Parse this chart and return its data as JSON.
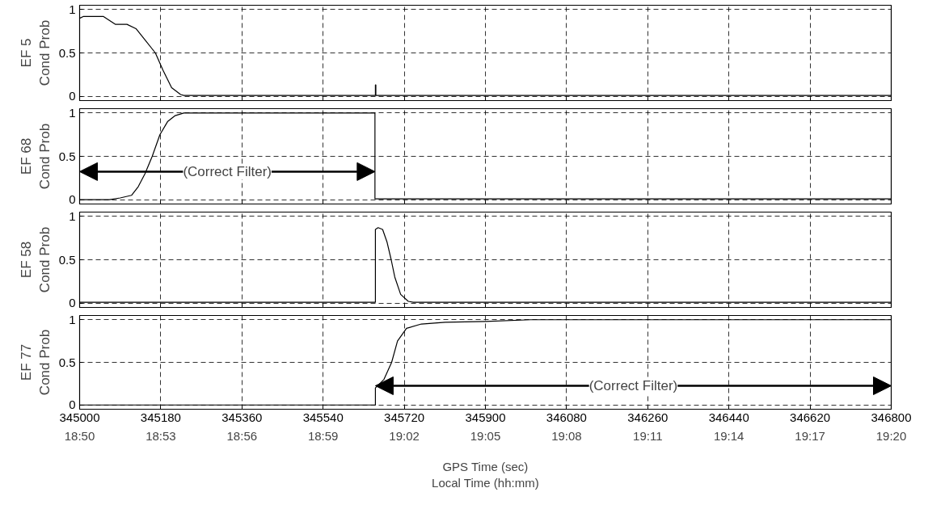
{
  "chart_data": [
    {
      "type": "line",
      "ylabel": "EF 5\nCond Prob",
      "color": "#000000",
      "x": [
        345000,
        345008,
        345053,
        345079,
        345105,
        345125,
        345145,
        345168,
        345185,
        345204,
        345224,
        345231,
        345656,
        345656,
        345657,
        345657,
        346800
      ],
      "values": [
        0.9,
        0.92,
        0.92,
        0.83,
        0.83,
        0.78,
        0.65,
        0.5,
        0.3,
        0.1,
        0.02,
        0.01,
        0.01,
        0.13,
        0.13,
        0.01,
        0.01
      ],
      "xlim": [
        345000,
        346800
      ],
      "xticks": [
        345000,
        345180,
        345360,
        345540,
        345720,
        345900,
        346080,
        346260,
        346440,
        346620,
        346800
      ],
      "ylim": [
        -0.05,
        1.05
      ],
      "yticks": [
        0,
        0.5,
        1
      ],
      "grid": true,
      "tick_labels": "y"
    },
    {
      "type": "line",
      "ylabel": "EF 68\nCond Prob",
      "color": "#000000",
      "x": [
        345000,
        345066,
        345090,
        345115,
        345130,
        345145,
        345161,
        345178,
        345195,
        345212,
        345231,
        345655,
        345655,
        346800
      ],
      "values": [
        0,
        0,
        0.02,
        0.05,
        0.15,
        0.3,
        0.5,
        0.75,
        0.9,
        0.97,
        1,
        1,
        0.01,
        0.01
      ],
      "xlim": [
        345000,
        346800
      ],
      "xticks": [
        345000,
        345180,
        345360,
        345540,
        345720,
        345900,
        346080,
        346260,
        346440,
        346620,
        346800
      ],
      "ylim": [
        -0.05,
        1.05
      ],
      "yticks": [
        0,
        0.5,
        1
      ],
      "grid": true,
      "tick_labels": "y",
      "annotations": [
        "(Correct Filter)"
      ]
    },
    {
      "type": "line",
      "ylabel": "EF 58\nCond Prob",
      "color": "#000000",
      "x": [
        345000,
        345656,
        345656,
        345662,
        345672,
        345682,
        345691,
        345699,
        345712,
        345729,
        345740,
        346800
      ],
      "values": [
        0.01,
        0.01,
        0.85,
        0.87,
        0.85,
        0.7,
        0.5,
        0.3,
        0.1,
        0.02,
        0.01,
        0.01
      ],
      "xlim": [
        345000,
        346800
      ],
      "xticks": [
        345000,
        345180,
        345360,
        345540,
        345720,
        345900,
        346080,
        346260,
        346440,
        346620,
        346800
      ],
      "ylim": [
        -0.05,
        1.05
      ],
      "yticks": [
        0,
        0.5,
        1
      ],
      "grid": true,
      "tick_labels": "y"
    },
    {
      "type": "line",
      "ylabel": "EF 77\nCond Prob",
      "xlabel": "GPS Time (sec)",
      "x2label": "Local Time (hh:mm)",
      "color": "#000000",
      "x": [
        345000,
        345656,
        345656,
        345675,
        345692,
        345705,
        345725,
        345758,
        345811,
        345900,
        346000,
        346800
      ],
      "values": [
        0,
        0,
        0.2,
        0.3,
        0.5,
        0.75,
        0.9,
        0.95,
        0.97,
        0.98,
        1,
        1
      ],
      "xlim": [
        345000,
        346800
      ],
      "xticks": [
        345000,
        345180,
        345360,
        345540,
        345720,
        345900,
        346080,
        346260,
        346440,
        346620,
        346800
      ],
      "x2lim": [
        18.833333,
        19.333333
      ],
      "x2ticks": [
        {
          "value": 18.833333,
          "label": "18:50"
        },
        {
          "value": 18.883333,
          "label": "18:53"
        },
        {
          "value": 18.933333,
          "label": "18:56"
        },
        {
          "value": 18.983333,
          "label": "18:59"
        },
        {
          "value": 19.033333,
          "label": "19:02"
        },
        {
          "value": 19.083333,
          "label": "19:05"
        },
        {
          "value": 19.133333,
          "label": "19:08"
        },
        {
          "value": 19.183333,
          "label": "19:11"
        },
        {
          "value": 19.233333,
          "label": "19:14"
        },
        {
          "value": 19.283333,
          "label": "19:17"
        },
        {
          "value": 19.333333,
          "label": "19:20"
        }
      ],
      "ylim": [
        -0.05,
        1.05
      ],
      "yticks": [
        0,
        0.5,
        1
      ],
      "grid": true,
      "annotations": [
        "(Correct Filter)"
      ]
    }
  ]
}
